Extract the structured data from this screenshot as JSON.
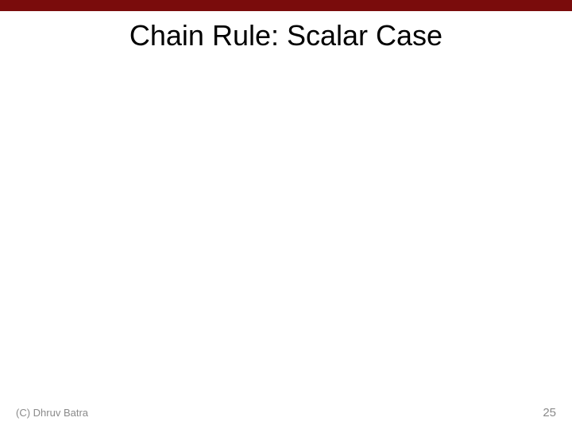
{
  "slide": {
    "title": "Chain Rule: Scalar Case",
    "copyright": "(C) Dhruv Batra",
    "page_number": "25",
    "header_bar_color": "#7a0c0c",
    "background_color": "#ffffff",
    "title_color": "#000000",
    "title_fontsize": 36,
    "footer_color": "#8a8a8a",
    "footer_fontsize": 13,
    "page_number_fontsize": 15
  }
}
